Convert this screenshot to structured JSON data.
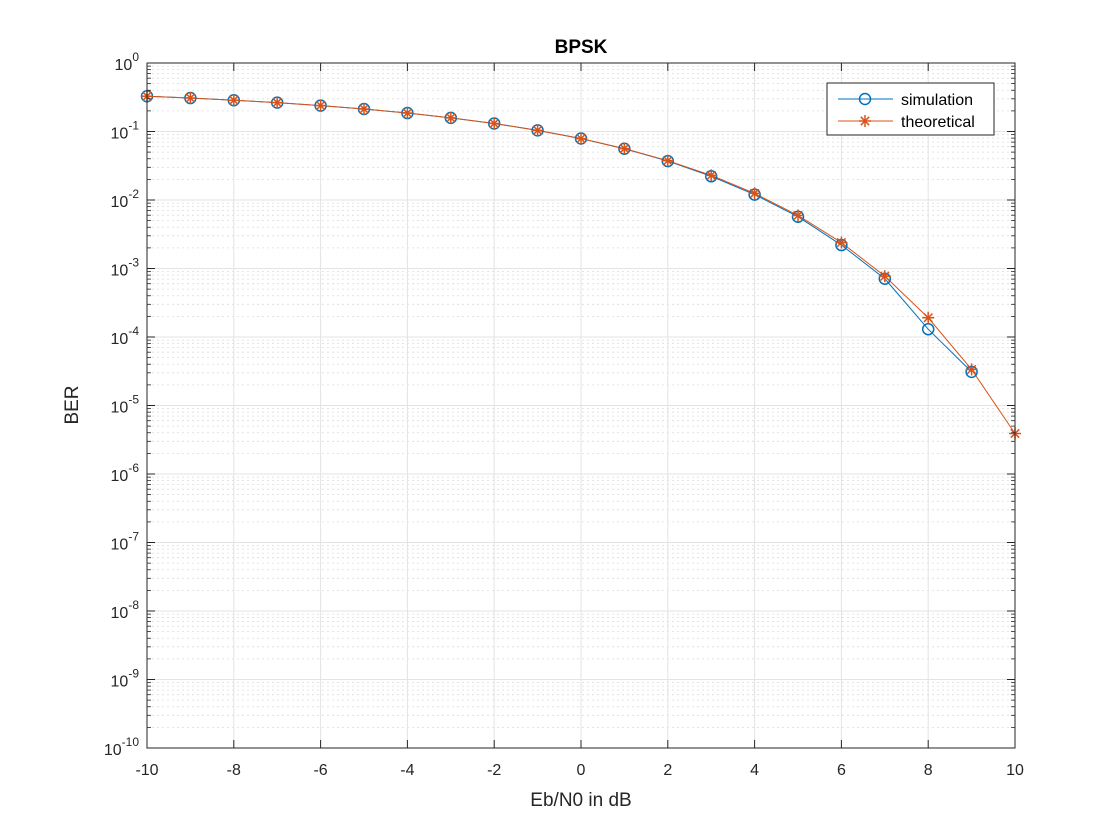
{
  "chart_data": {
    "type": "line",
    "title": "BPSK",
    "xlabel": "Eb/N0 in dB",
    "ylabel": "BER",
    "xlim": [
      -10,
      10
    ],
    "ylim": [
      1e-10,
      1
    ],
    "yscale": "log",
    "grid": true,
    "minor_grid": true,
    "legend_position": "top-right",
    "x_ticks": [
      -10,
      -8,
      -6,
      -4,
      -2,
      0,
      2,
      4,
      6,
      8,
      10
    ],
    "y_tick_exponents": [
      0,
      -1,
      -2,
      -3,
      -4,
      -5,
      -6,
      -7,
      -8,
      -9,
      -10
    ],
    "series": [
      {
        "name": "simulation",
        "color": "#0072BD",
        "marker": "circle",
        "x": [
          -10,
          -9,
          -8,
          -7,
          -6,
          -5,
          -4,
          -3,
          -2,
          -1,
          0,
          1,
          2,
          3,
          4,
          5,
          6,
          7,
          8,
          9
        ],
        "values": [
          0.327,
          0.308,
          0.286,
          0.264,
          0.239,
          0.213,
          0.186,
          0.158,
          0.131,
          0.104,
          0.079,
          0.056,
          0.037,
          0.0222,
          0.012,
          0.0057,
          0.0022,
          0.00071,
          0.00013,
          3.1e-05
        ]
      },
      {
        "name": "theoretical",
        "color": "#D95319",
        "marker": "asterisk",
        "x": [
          -10,
          -9,
          -8,
          -7,
          -6,
          -5,
          -4,
          -3,
          -2,
          -1,
          0,
          1,
          2,
          3,
          4,
          5,
          6,
          7,
          8,
          9,
          10
        ],
        "values": [
          0.327,
          0.308,
          0.286,
          0.264,
          0.239,
          0.213,
          0.186,
          0.158,
          0.131,
          0.104,
          0.0786,
          0.0563,
          0.0375,
          0.0229,
          0.0125,
          0.00595,
          0.00239,
          0.000773,
          0.000191,
          3.36e-05,
          3.9e-06
        ]
      }
    ]
  }
}
